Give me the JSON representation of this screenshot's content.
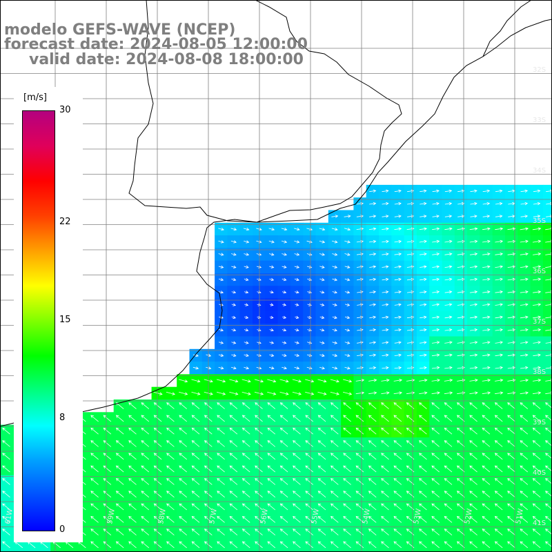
{
  "title": {
    "line1": "modelo GEFS-WAVE (NCEP)",
    "line2": "forecast date: 2024-08-05 12:00:00",
    "line3": "valid date: 2024-08-08 18:00:00"
  },
  "colorbar": {
    "unit": "[m/s]",
    "ticks": [
      "30",
      "22",
      "15",
      "8",
      "0"
    ],
    "tick_values": [
      30,
      22,
      15,
      8,
      0
    ],
    "range": [
      0,
      30
    ],
    "colors": [
      "#0000ff",
      "#0050ff",
      "#00a0ff",
      "#00ffff",
      "#00ff80",
      "#00ff00",
      "#80ff00",
      "#ffff00",
      "#ffa000",
      "#ff4000",
      "#ff0000",
      "#e0005a",
      "#b4007f"
    ]
  },
  "map": {
    "lat_labels": [
      "32S",
      "33S",
      "34S",
      "35S",
      "36S",
      "37S",
      "38S",
      "39S",
      "40S",
      "41S"
    ],
    "lon_labels": [
      "61W",
      "60W",
      "59W",
      "58W",
      "57W",
      "56W",
      "55W",
      "54W",
      "53W",
      "52W",
      "51W"
    ],
    "lat_range": [
      -41.3,
      -30.9
    ],
    "lon_range": [
      -61.2,
      -50.5
    ],
    "colors": {
      "land": "#ffffff",
      "coast": "#000000",
      "grid": "#7f7f7f",
      "arrow": "#ffffff"
    }
  }
}
